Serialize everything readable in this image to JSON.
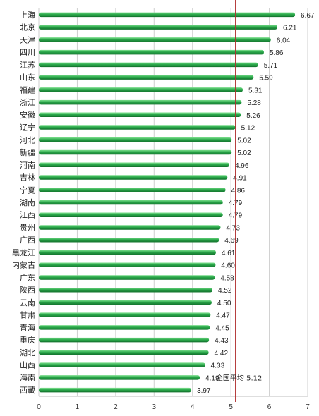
{
  "chart_data": {
    "type": "bar",
    "orientation": "horizontal",
    "categories": [
      "上海",
      "北京",
      "天津",
      "四川",
      "江苏",
      "山东",
      "福建",
      "浙江",
      "安徽",
      "辽宁",
      "河北",
      "新疆",
      "河南",
      "吉林",
      "宁夏",
      "湖南",
      "江西",
      "贵州",
      "广西",
      "黑龙江",
      "内蒙古",
      "广东",
      "陕西",
      "云南",
      "甘肃",
      "青海",
      "重庆",
      "湖北",
      "山西",
      "海南",
      "西藏"
    ],
    "values": [
      6.67,
      6.21,
      6.04,
      5.86,
      5.71,
      5.59,
      5.31,
      5.28,
      5.26,
      5.12,
      5.02,
      5.02,
      4.96,
      4.91,
      4.86,
      4.79,
      4.79,
      4.73,
      4.69,
      4.61,
      4.6,
      4.58,
      4.52,
      4.5,
      4.47,
      4.45,
      4.43,
      4.42,
      4.33,
      4.19,
      3.97
    ],
    "value_labels": [
      "6.67",
      "6.21",
      "6.04",
      "5.86",
      "5.71",
      "5.59",
      "5.31",
      "5.28",
      "5.26",
      "5.12",
      "5.02",
      "5.02",
      "4.96",
      "4.91",
      "4.86",
      "4.79",
      "4.79",
      "4.73",
      "4.69",
      "4.61",
      "4.60",
      "4.58",
      "4.52",
      "4.50",
      "4.47",
      "4.45",
      "4.43",
      "4.42",
      "4.33",
      "4.19",
      "3.97"
    ],
    "xlim": [
      0,
      7
    ],
    "xticks": [
      "0",
      "1",
      "2",
      "3",
      "4",
      "5",
      "6",
      "7"
    ],
    "grid": "vertical",
    "bar_color": "#2aa84a",
    "reference_line": {
      "value": 5.12,
      "label": "全国平均 5.12",
      "color": "#b03030"
    },
    "title": "",
    "xlabel": "",
    "ylabel": ""
  }
}
